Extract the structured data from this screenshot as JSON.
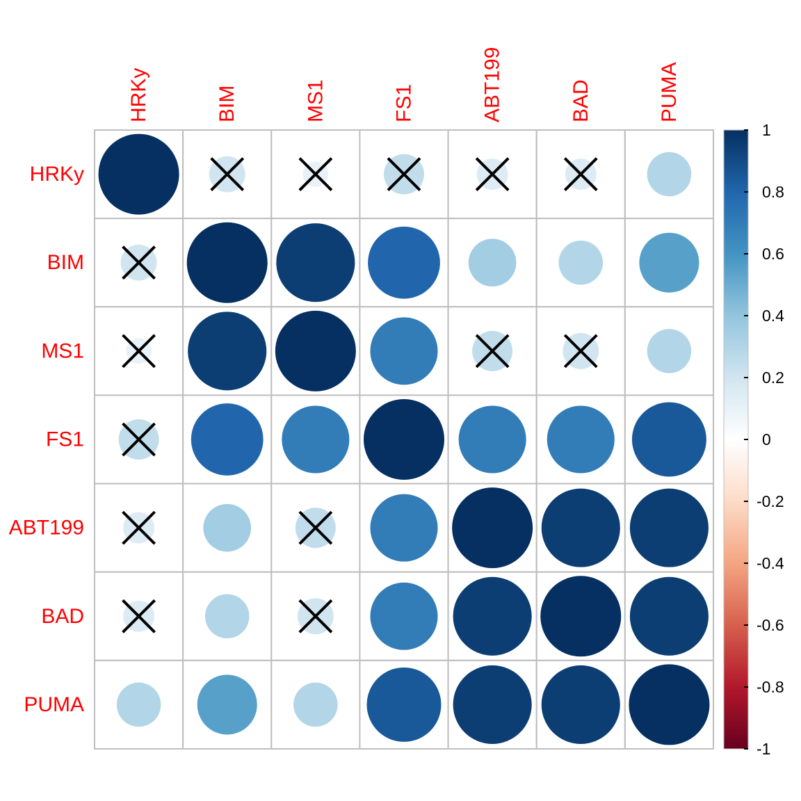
{
  "chart_data": {
    "type": "heatmap",
    "style": "correlation-circle-matrix",
    "variables": [
      "HRKy",
      "BIM",
      "MS1",
      "FS1",
      "ABT199",
      "BAD",
      "PUMA"
    ],
    "matrix": [
      [
        1.0,
        0.2,
        0.1,
        0.25,
        0.15,
        0.15,
        0.3
      ],
      [
        0.2,
        1.0,
        0.95,
        0.8,
        0.35,
        0.3,
        0.55
      ],
      [
        0.1,
        0.95,
        1.0,
        0.7,
        0.25,
        0.2,
        0.3
      ],
      [
        0.25,
        0.8,
        0.7,
        1.0,
        0.7,
        0.7,
        0.85
      ],
      [
        0.15,
        0.35,
        0.25,
        0.7,
        1.0,
        0.95,
        0.95
      ],
      [
        0.15,
        0.3,
        0.2,
        0.7,
        0.95,
        1.0,
        0.95
      ],
      [
        0.3,
        0.55,
        0.3,
        0.85,
        0.95,
        0.95,
        1.0
      ]
    ],
    "not_significant": [
      [
        0,
        1
      ],
      [
        0,
        2
      ],
      [
        0,
        3
      ],
      [
        0,
        4
      ],
      [
        0,
        5
      ],
      [
        1,
        0
      ],
      [
        2,
        0
      ],
      [
        3,
        0
      ],
      [
        4,
        0
      ],
      [
        5,
        0
      ],
      [
        2,
        4
      ],
      [
        2,
        5
      ],
      [
        4,
        2
      ],
      [
        5,
        2
      ]
    ],
    "colorbar": {
      "range": [
        -1,
        1
      ],
      "ticks": [
        "1",
        "0.8",
        "0.6",
        "0.4",
        "0.2",
        "0",
        "-0.2",
        "-0.4",
        "-0.6",
        "-0.8",
        "-1"
      ],
      "colors": [
        "#67001F",
        "#B2182B",
        "#D6604D",
        "#F4A582",
        "#FDDBC7",
        "#FFFFFF",
        "#D1E5F0",
        "#92C5DE",
        "#4393C3",
        "#2166AC",
        "#053061"
      ]
    },
    "label_color": "#FF0000",
    "grid_color": "#BEBEBE",
    "cross_color": "#000000"
  }
}
